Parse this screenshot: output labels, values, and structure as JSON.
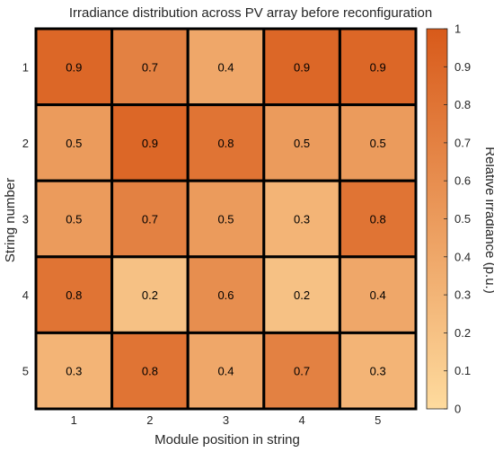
{
  "chart_data": {
    "type": "heatmap",
    "title": "Irradiance distribution across PV array before reconfiguration",
    "xlabel": "Module position in string",
    "ylabel": "String number",
    "x_categories": [
      "1",
      "2",
      "3",
      "4",
      "5"
    ],
    "y_categories": [
      "1",
      "2",
      "3",
      "4",
      "5"
    ],
    "values": [
      [
        0.9,
        0.7,
        0.4,
        0.9,
        0.9
      ],
      [
        0.5,
        0.9,
        0.8,
        0.5,
        0.5
      ],
      [
        0.5,
        0.7,
        0.5,
        0.3,
        0.8
      ],
      [
        0.8,
        0.2,
        0.6,
        0.2,
        0.4
      ],
      [
        0.3,
        0.8,
        0.4,
        0.7,
        0.3
      ]
    ],
    "colorbar": {
      "label": "Relative irradiance (p.u.)",
      "range": [
        0,
        1
      ],
      "ticks": [
        "0",
        "0.1",
        "0.2",
        "0.3",
        "0.4",
        "0.5",
        "0.6",
        "0.7",
        "0.8",
        "0.9",
        "1"
      ],
      "color_low": "#fedb9e",
      "color_high": "#d85a1a"
    },
    "cell_text_color": "#000000",
    "cell_border_color": "#000000"
  }
}
